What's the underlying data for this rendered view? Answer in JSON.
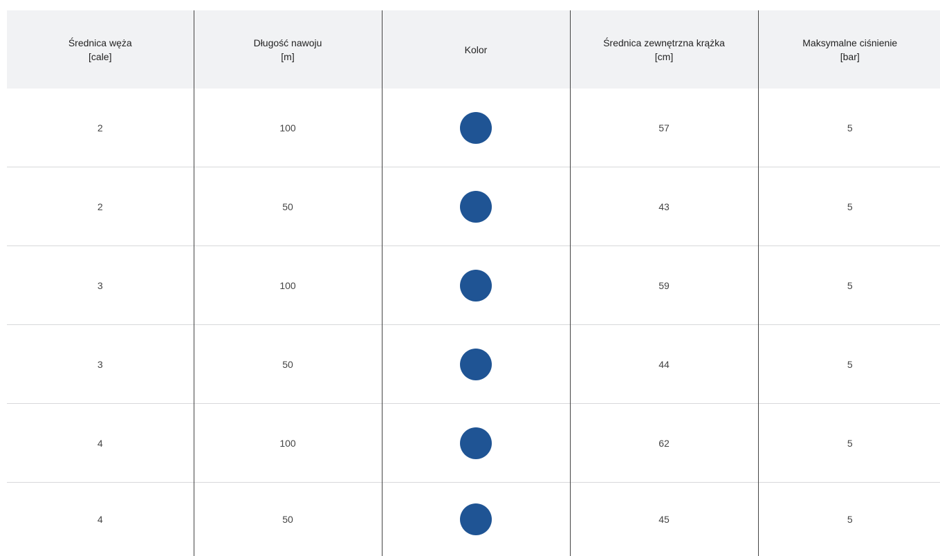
{
  "headers": [
    {
      "title": "Średnica węża",
      "unit": "[cale]"
    },
    {
      "title": "Długość nawoju",
      "unit": "[m]"
    },
    {
      "title": "Kolor",
      "unit": ""
    },
    {
      "title": "Średnica zewnętrzna krążka",
      "unit": "[cm]"
    },
    {
      "title": "Maksymalne ciśnienie",
      "unit": "[bar]"
    }
  ],
  "rows": [
    {
      "diameter": "2",
      "length": "100",
      "color": "#1f5494",
      "outer_diameter": "57",
      "max_pressure": "5"
    },
    {
      "diameter": "2",
      "length": "50",
      "color": "#1f5494",
      "outer_diameter": "43",
      "max_pressure": "5"
    },
    {
      "diameter": "3",
      "length": "100",
      "color": "#1f5494",
      "outer_diameter": "59",
      "max_pressure": "5"
    },
    {
      "diameter": "3",
      "length": "50",
      "color": "#1f5494",
      "outer_diameter": "44",
      "max_pressure": "5"
    },
    {
      "diameter": "4",
      "length": "100",
      "color": "#1f5494",
      "outer_diameter": "62",
      "max_pressure": "5"
    },
    {
      "diameter": "4",
      "length": "50",
      "color": "#1f5494",
      "outer_diameter": "45",
      "max_pressure": "5"
    }
  ]
}
